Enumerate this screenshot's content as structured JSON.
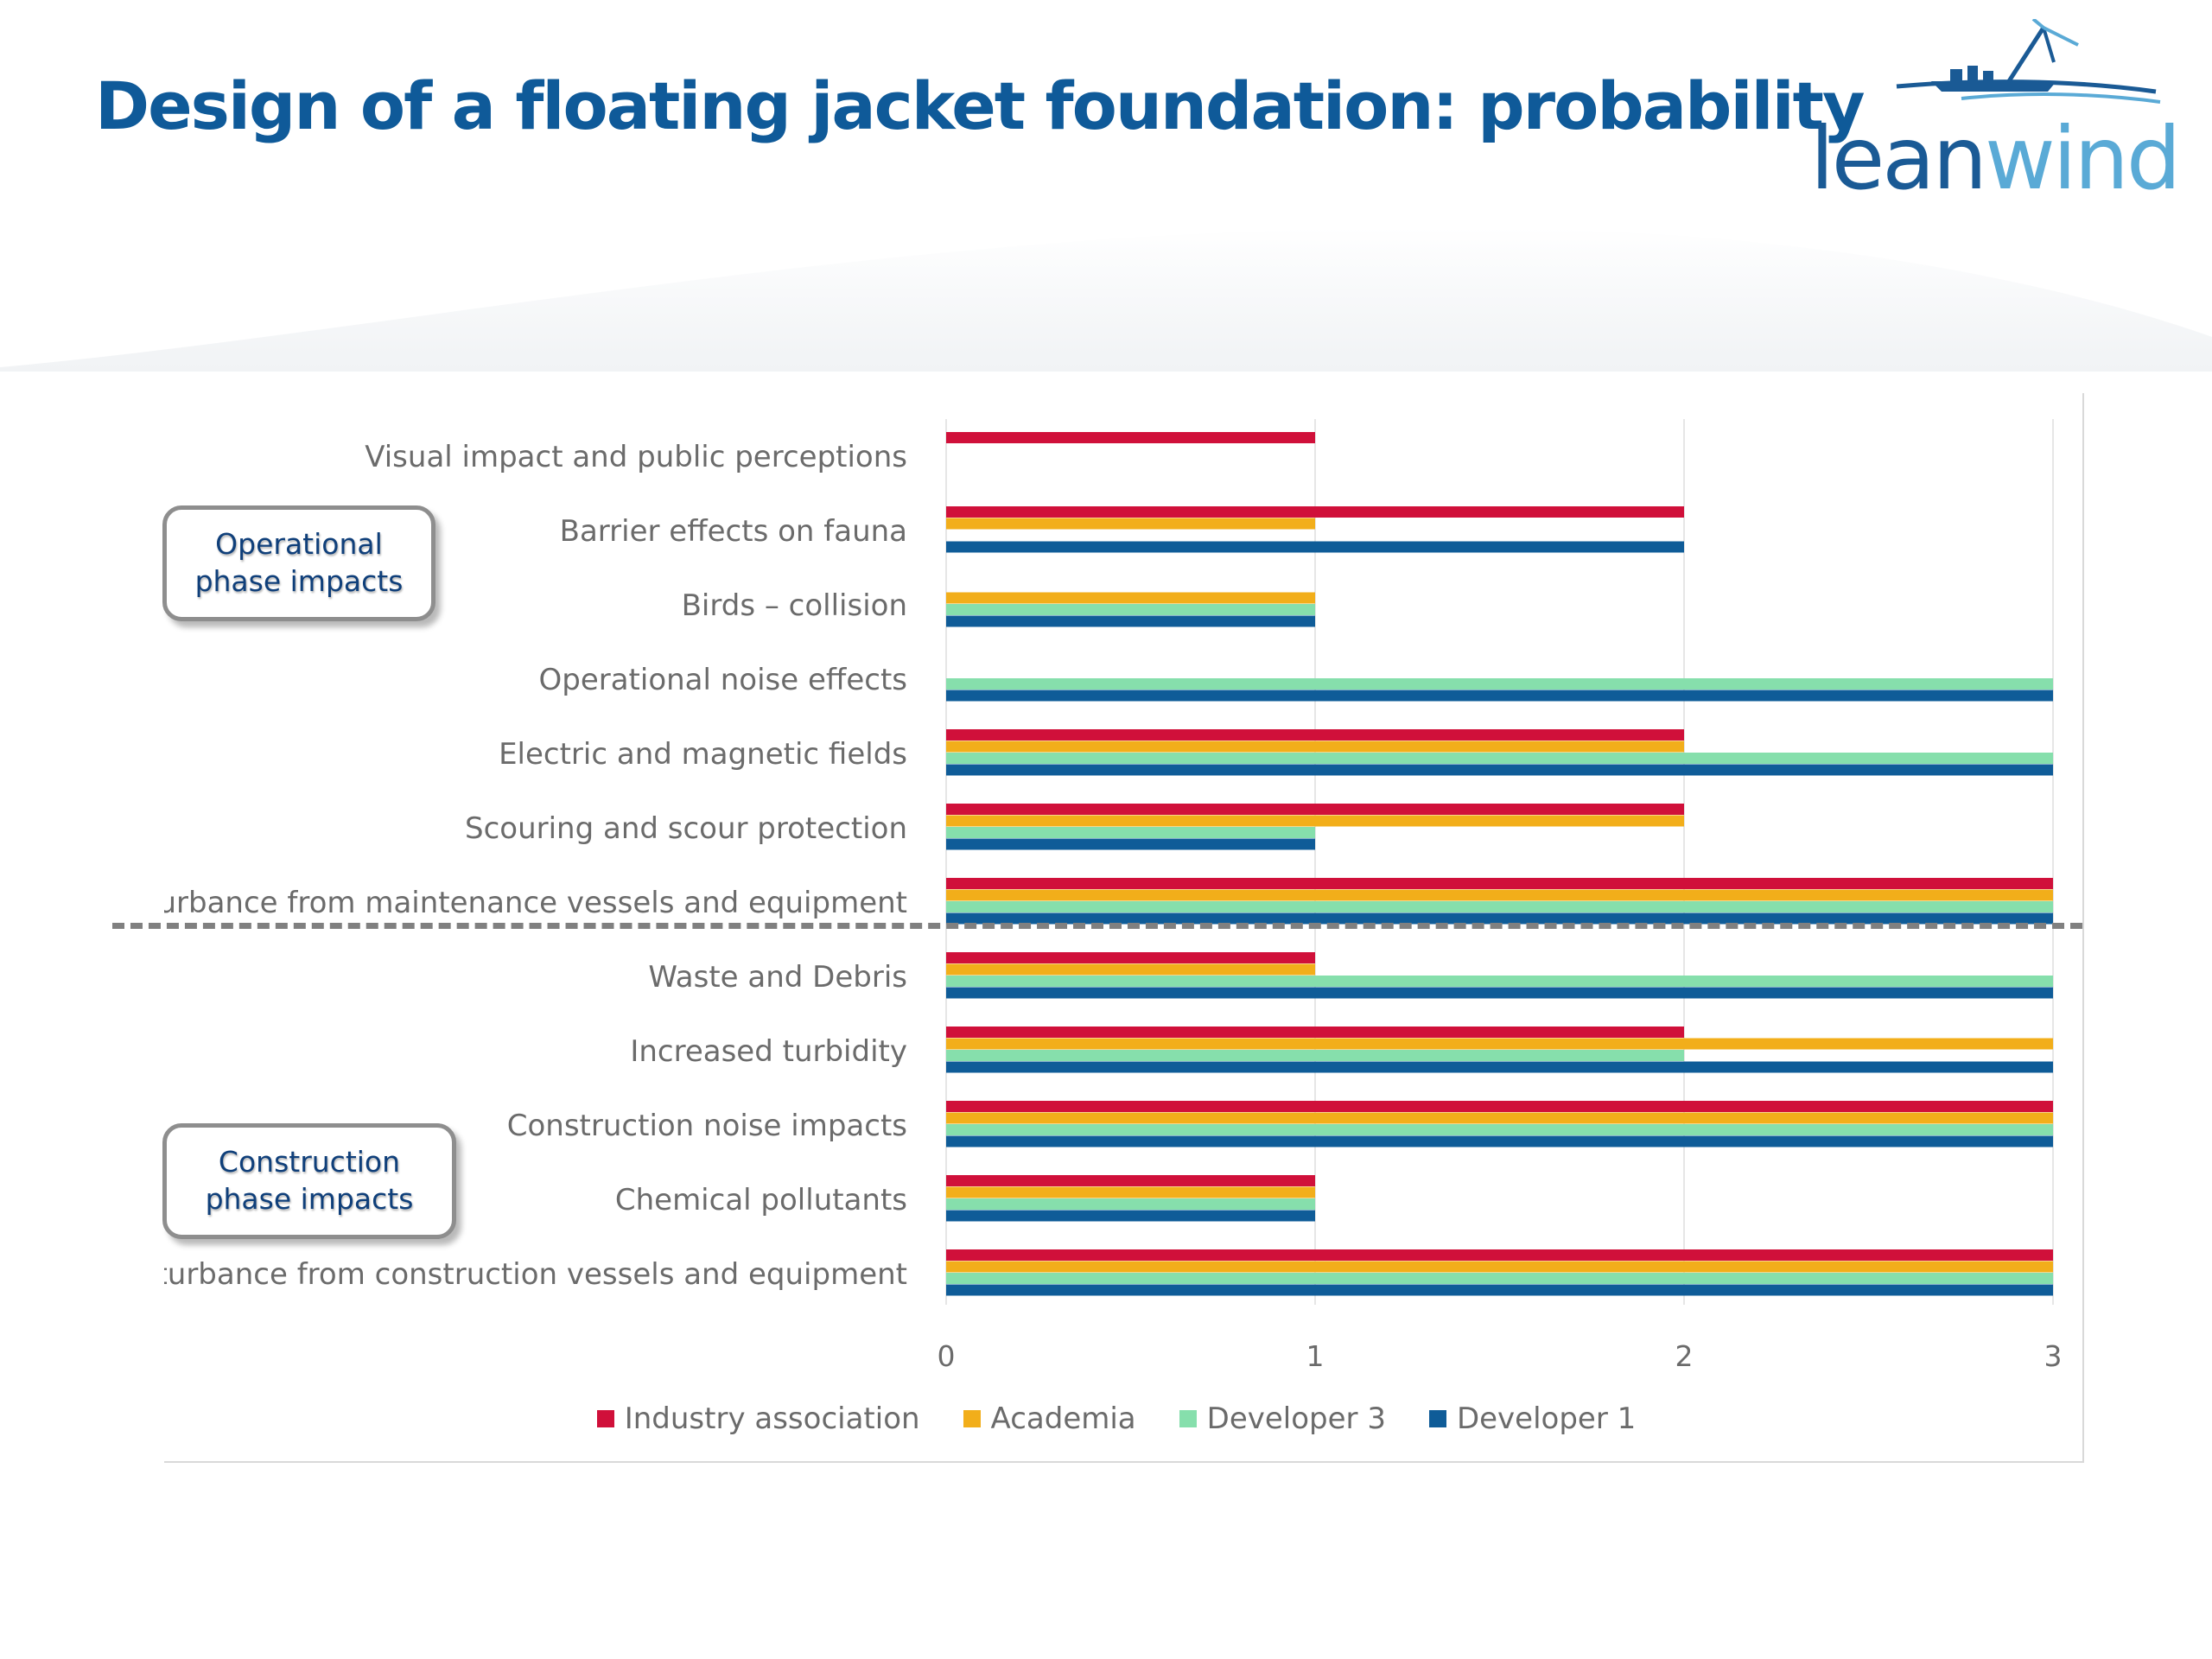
{
  "slide": {
    "title": "Design of a floating jacket foundation: probability",
    "logo": {
      "part1": "lean",
      "part2": "wind"
    }
  },
  "phases": {
    "operational": "Operational phase impacts",
    "construction": "Construction phase impacts"
  },
  "chart_data": {
    "type": "bar",
    "orientation": "horizontal",
    "title": "",
    "xlabel": "",
    "ylabel": "",
    "xlim": [
      0,
      3
    ],
    "x_ticks": [
      "0",
      "1",
      "2",
      "3"
    ],
    "grid": true,
    "legend_position": "bottom",
    "categories": [
      "Visual impact and public perceptions",
      "Barrier effects on fauna",
      "Birds – collision",
      "Operational noise effects",
      "Electric and magnetic fields",
      "Scouring and scour protection",
      "Disturbance from maintenance vessels and equipment",
      "Waste and Debris",
      "Increased turbidity",
      "Construction noise impacts",
      "Chemical pollutants",
      "Disturbance from construction vessels and equipment"
    ],
    "series": [
      {
        "name": "Industry association",
        "color": "#d0103a",
        "values": [
          1,
          2,
          0,
          0,
          2,
          2,
          3,
          1,
          2,
          3,
          1,
          3
        ]
      },
      {
        "name": "Academia",
        "color": "#f2ae1a",
        "values": [
          0,
          1,
          1,
          0,
          2,
          2,
          3,
          1,
          3,
          3,
          1,
          3
        ]
      },
      {
        "name": "Developer 3",
        "color": "#86dfac",
        "values": [
          0,
          0,
          1,
          3,
          3,
          1,
          3,
          3,
          2,
          3,
          1,
          3
        ]
      },
      {
        "name": "Developer 1",
        "color": "#0f5c98",
        "values": [
          0,
          2,
          1,
          3,
          3,
          1,
          3,
          3,
          3,
          3,
          1,
          3
        ]
      }
    ]
  }
}
